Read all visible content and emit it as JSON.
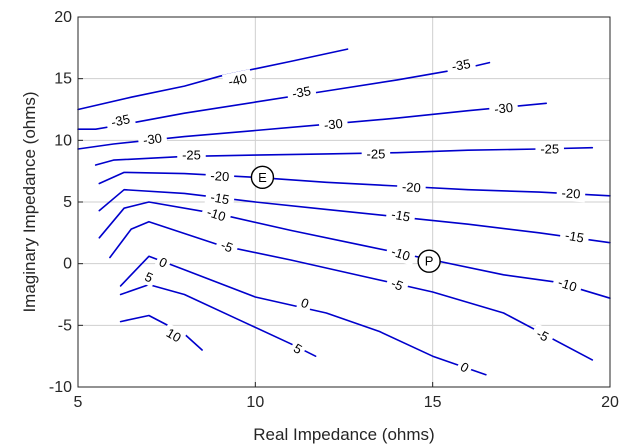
{
  "chart_data": {
    "type": "contour",
    "title": "",
    "xlabel": "Real Impedance (ohms)",
    "ylabel": "Imaginary Impedance (ohms)",
    "xlim": [
      5,
      20
    ],
    "ylim": [
      -10,
      20
    ],
    "xticks": [
      5,
      10,
      15,
      20
    ],
    "yticks": [
      -10,
      -5,
      0,
      5,
      10,
      15,
      20
    ],
    "grid": true,
    "line_color": "#0000cc",
    "contours": [
      {
        "level": "-40",
        "points": [
          [
            5,
            12.5
          ],
          [
            6.5,
            13.5
          ],
          [
            8,
            14.4
          ],
          [
            9,
            15.2
          ],
          [
            10,
            15.8
          ],
          [
            11,
            16.4
          ],
          [
            12.6,
            17.4
          ]
        ]
      },
      {
        "level": "-35",
        "points": [
          [
            5,
            10.9
          ],
          [
            5.5,
            10.9
          ],
          [
            6.5,
            11.4
          ],
          [
            8,
            12.2
          ],
          [
            10,
            13.1
          ],
          [
            12,
            14.0
          ],
          [
            14,
            14.9
          ],
          [
            16,
            15.9
          ],
          [
            16.6,
            16.3
          ]
        ]
      },
      {
        "level": "-30",
        "points": [
          [
            5,
            9.3
          ],
          [
            6,
            9.7
          ],
          [
            8,
            10.3
          ],
          [
            10,
            10.8
          ],
          [
            12,
            11.3
          ],
          [
            14,
            11.8
          ],
          [
            16,
            12.4
          ],
          [
            18.2,
            13.0
          ]
        ]
      },
      {
        "level": "-25",
        "points": [
          [
            5.5,
            8.0
          ],
          [
            6,
            8.4
          ],
          [
            8,
            8.7
          ],
          [
            10,
            8.8
          ],
          [
            12,
            8.9
          ],
          [
            14,
            9.0
          ],
          [
            16,
            9.2
          ],
          [
            18,
            9.3
          ],
          [
            19.5,
            9.4
          ]
        ]
      },
      {
        "level": "-20",
        "points": [
          [
            5.6,
            6.5
          ],
          [
            6.3,
            7.4
          ],
          [
            8,
            7.3
          ],
          [
            10,
            7.0
          ],
          [
            12,
            6.6
          ],
          [
            14,
            6.3
          ],
          [
            16,
            6.0
          ],
          [
            18,
            5.8
          ],
          [
            20,
            5.5
          ]
        ]
      },
      {
        "level": "-15",
        "points": [
          [
            5.6,
            4.3
          ],
          [
            6.3,
            6.0
          ],
          [
            8,
            5.7
          ],
          [
            10,
            5.0
          ],
          [
            12,
            4.4
          ],
          [
            14,
            3.8
          ],
          [
            16,
            3.2
          ],
          [
            18,
            2.5
          ],
          [
            20,
            1.7
          ]
        ]
      },
      {
        "level": "-10",
        "points": [
          [
            5.6,
            2.1
          ],
          [
            6.3,
            4.5
          ],
          [
            7,
            5.0
          ],
          [
            9,
            4.0
          ],
          [
            11,
            2.7
          ],
          [
            13,
            1.5
          ],
          [
            15,
            0.3
          ],
          [
            17,
            -0.9
          ],
          [
            18.5,
            -1.5
          ],
          [
            20,
            -2.8
          ]
        ]
      },
      {
        "level": "-5",
        "points": [
          [
            5.9,
            0.5
          ],
          [
            6.5,
            2.8
          ],
          [
            7,
            3.4
          ],
          [
            9,
            1.5
          ],
          [
            11,
            0.3
          ],
          [
            13,
            -1.0
          ],
          [
            15,
            -2.3
          ],
          [
            17,
            -4.0
          ],
          [
            19.5,
            -7.8
          ]
        ]
      },
      {
        "level": "0",
        "points": [
          [
            6.2,
            -1.8
          ],
          [
            7,
            0.6
          ],
          [
            8,
            -0.5
          ],
          [
            10,
            -2.7
          ],
          [
            12,
            -4.0
          ],
          [
            13.5,
            -5.5
          ],
          [
            15,
            -7.5
          ],
          [
            16.5,
            -9.0
          ]
        ]
      },
      {
        "level": "5",
        "points": [
          [
            6.2,
            -2.5
          ],
          [
            7,
            -1.7
          ],
          [
            8,
            -2.5
          ],
          [
            9.5,
            -4.5
          ],
          [
            11,
            -6.5
          ],
          [
            11.7,
            -7.5
          ]
        ]
      },
      {
        "level": "10",
        "points": [
          [
            6.2,
            -4.7
          ],
          [
            7,
            -4.2
          ],
          [
            8,
            -5.7
          ],
          [
            8.5,
            -7.0
          ]
        ]
      }
    ],
    "contour_labels": [
      {
        "text": "-40",
        "x": 9.5,
        "y": 14.9,
        "angle": -12
      },
      {
        "text": "-35",
        "x": 6.2,
        "y": 11.6,
        "angle": -12
      },
      {
        "text": "-35",
        "x": 11.3,
        "y": 13.9,
        "angle": -10
      },
      {
        "text": "-35",
        "x": 15.8,
        "y": 16.1,
        "angle": -10
      },
      {
        "text": "-30",
        "x": 7.1,
        "y": 10.1,
        "angle": -8
      },
      {
        "text": "-30",
        "x": 12.2,
        "y": 11.3,
        "angle": -6
      },
      {
        "text": "-30",
        "x": 17.0,
        "y": 12.6,
        "angle": -6
      },
      {
        "text": "-25",
        "x": 8.2,
        "y": 8.8,
        "angle": 0
      },
      {
        "text": "-25",
        "x": 13.4,
        "y": 8.9,
        "angle": 0
      },
      {
        "text": "-25",
        "x": 18.3,
        "y": 9.3,
        "angle": 0
      },
      {
        "text": "-20",
        "x": 9.0,
        "y": 7.1,
        "angle": 4
      },
      {
        "text": "-20",
        "x": 14.4,
        "y": 6.2,
        "angle": 4
      },
      {
        "text": "-20",
        "x": 18.9,
        "y": 5.7,
        "angle": 4
      },
      {
        "text": "-15",
        "x": 9.0,
        "y": 5.3,
        "angle": 10
      },
      {
        "text": "-15",
        "x": 14.1,
        "y": 3.9,
        "angle": 10
      },
      {
        "text": "-15",
        "x": 19.0,
        "y": 2.2,
        "angle": 10
      },
      {
        "text": "-10",
        "x": 8.9,
        "y": 4.0,
        "angle": 18
      },
      {
        "text": "-10",
        "x": 14.1,
        "y": 0.8,
        "angle": 18
      },
      {
        "text": "-10",
        "x": 18.8,
        "y": -1.7,
        "angle": 18
      },
      {
        "text": "-5",
        "x": 9.2,
        "y": 1.4,
        "angle": 22
      },
      {
        "text": "-5",
        "x": 14.0,
        "y": -1.7,
        "angle": 22
      },
      {
        "text": "-5",
        "x": 18.1,
        "y": -5.8,
        "angle": 28
      },
      {
        "text": "0",
        "x": 7.4,
        "y": 0.1,
        "angle": 25
      },
      {
        "text": "0",
        "x": 11.4,
        "y": -3.2,
        "angle": 20
      },
      {
        "text": "0",
        "x": 15.9,
        "y": -8.4,
        "angle": 30
      },
      {
        "text": "5",
        "x": 7.0,
        "y": -1.1,
        "angle": 25
      },
      {
        "text": "5",
        "x": 11.2,
        "y": -6.9,
        "angle": 30
      },
      {
        "text": "10",
        "x": 7.7,
        "y": -5.8,
        "angle": 30
      }
    ],
    "markers": [
      {
        "text": "E",
        "x": 10.2,
        "y": 7.0
      },
      {
        "text": "P",
        "x": 14.9,
        "y": 0.2
      }
    ]
  }
}
